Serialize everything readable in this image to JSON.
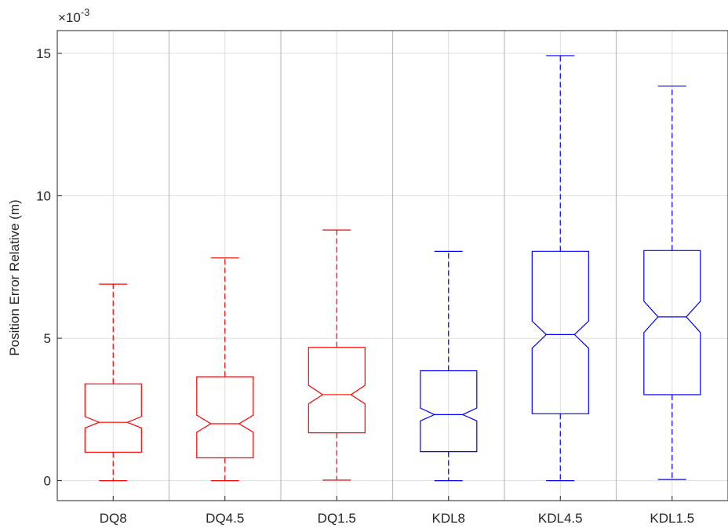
{
  "chart_data": {
    "type": "boxplot",
    "title": "",
    "xlabel": "",
    "ylabel": "Position Error Relative (m)",
    "y_exponent_label": "×10",
    "y_exponent_power": "-3",
    "ylim": [
      -0.7,
      15.8
    ],
    "yticks": [
      0,
      5,
      10,
      15
    ],
    "ytick_labels": [
      "0",
      "5",
      "10",
      "15"
    ],
    "grid": true,
    "notched": true,
    "categories": [
      "DQ8",
      "DQ4.5",
      "DQ1.5",
      "KDL8",
      "KDL4.5",
      "KDL1.5"
    ],
    "colors": [
      "#ff0000",
      "#ff0000",
      "#ff0000",
      "#0000ff",
      "#0000ff",
      "#0000ff"
    ],
    "boxes": [
      {
        "label": "DQ8",
        "whisker_low": 0.0,
        "q1": 1.0,
        "median": 2.05,
        "q3": 3.4,
        "whisker_high": 6.9,
        "notch_low": 1.85,
        "notch_high": 2.25
      },
      {
        "label": "DQ4.5",
        "whisker_low": 0.0,
        "q1": 0.8,
        "median": 2.0,
        "q3": 3.65,
        "whisker_high": 7.82,
        "notch_low": 1.7,
        "notch_high": 2.3
      },
      {
        "label": "DQ1.5",
        "whisker_low": 0.02,
        "q1": 1.68,
        "median": 3.02,
        "q3": 4.68,
        "whisker_high": 8.8,
        "notch_low": 2.7,
        "notch_high": 3.35
      },
      {
        "label": "KDL8",
        "whisker_low": 0.0,
        "q1": 1.02,
        "median": 2.32,
        "q3": 3.86,
        "whisker_high": 8.05,
        "notch_low": 2.1,
        "notch_high": 2.55
      },
      {
        "label": "KDL4.5",
        "whisker_low": 0.0,
        "q1": 2.35,
        "median": 5.13,
        "q3": 8.05,
        "whisker_high": 14.92,
        "notch_low": 4.65,
        "notch_high": 5.6
      },
      {
        "label": "KDL1.5",
        "whisker_low": 0.04,
        "q1": 3.02,
        "median": 5.75,
        "q3": 8.08,
        "whisker_high": 13.85,
        "notch_low": 5.2,
        "notch_high": 6.3
      }
    ]
  }
}
